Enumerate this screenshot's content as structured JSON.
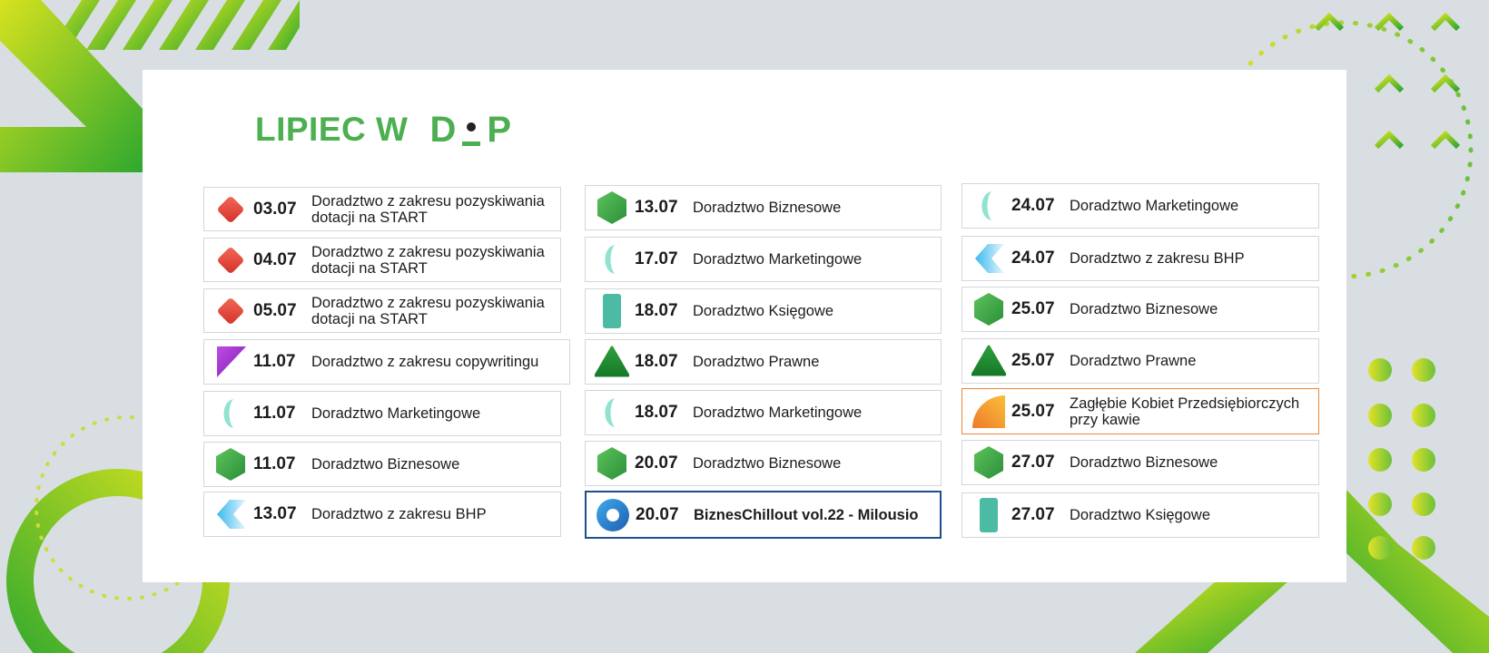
{
  "header": {
    "title_prefix": "LIPIEC W",
    "logo_left": "D",
    "logo_right": "P"
  },
  "columns": [
    {
      "items": [
        {
          "date": "03.07",
          "label": "Doradztwo z zakresu pozyskiwania dotacji na START",
          "icon": "red-diamond-icon"
        },
        {
          "date": "04.07",
          "label": "Doradztwo z zakresu pozyskiwania dotacji na START",
          "icon": "red-diamond-icon"
        },
        {
          "date": "05.07",
          "label": "Doradztwo z zakresu pozyskiwania dotacji na START",
          "icon": "red-diamond-icon"
        },
        {
          "date": "11.07",
          "label": "Doradztwo z zakresu copywritingu",
          "icon": "purple-triangle-icon"
        },
        {
          "date": "11.07",
          "label": "Doradztwo Marketingowe",
          "icon": "mint-crescent-icon"
        },
        {
          "date": "11.07",
          "label": "Doradztwo Biznesowe",
          "icon": "green-hexagon-icon"
        },
        {
          "date": "13.07",
          "label": "Doradztwo z zakresu BHP",
          "icon": "blue-chevron-icon"
        }
      ]
    },
    {
      "items": [
        {
          "date": "13.07",
          "label": "Doradztwo Biznesowe",
          "icon": "green-hexagon-icon"
        },
        {
          "date": "17.07",
          "label": "Doradztwo Marketingowe",
          "icon": "mint-crescent-icon"
        },
        {
          "date": "18.07",
          "label": "Doradztwo Księgowe",
          "icon": "teal-pill-icon"
        },
        {
          "date": "18.07",
          "label": "Doradztwo Prawne",
          "icon": "green-triangle-icon"
        },
        {
          "date": "18.07",
          "label": "Doradztwo Marketingowe",
          "icon": "mint-crescent-icon"
        },
        {
          "date": "20.07",
          "label": "Doradztwo Biznesowe",
          "icon": "green-hexagon-icon"
        },
        {
          "date": "20.07",
          "label": "BiznesChillout vol.22 - Milousio",
          "icon": "blue-ring-icon",
          "highlight": true
        }
      ]
    },
    {
      "items": [
        {
          "date": "24.07",
          "label": "Doradztwo Marketingowe",
          "icon": "mint-crescent-icon"
        },
        {
          "date": "24.07",
          "label": "Doradztwo z zakresu BHP",
          "icon": "blue-chevron-icon"
        },
        {
          "date": "25.07",
          "label": "Doradztwo Biznesowe",
          "icon": "green-hexagon-icon"
        },
        {
          "date": "25.07",
          "label": "Doradztwo Prawne",
          "icon": "green-triangle-icon"
        },
        {
          "date": "25.07",
          "label": "Zagłębie Kobiet Przedsiębiorczych przy kawie",
          "icon": "orange-quarter-icon",
          "highlight": true
        },
        {
          "date": "27.07",
          "label": "Doradztwo Biznesowe",
          "icon": "green-hexagon-icon"
        },
        {
          "date": "27.07",
          "label": "Doradztwo Księgowe",
          "icon": "teal-pill-icon"
        }
      ]
    }
  ],
  "colors": {
    "title_green": "#4caf50",
    "highlight_blue_border": "#1f4e8c",
    "highlight_orange_border": "#e8863a"
  }
}
